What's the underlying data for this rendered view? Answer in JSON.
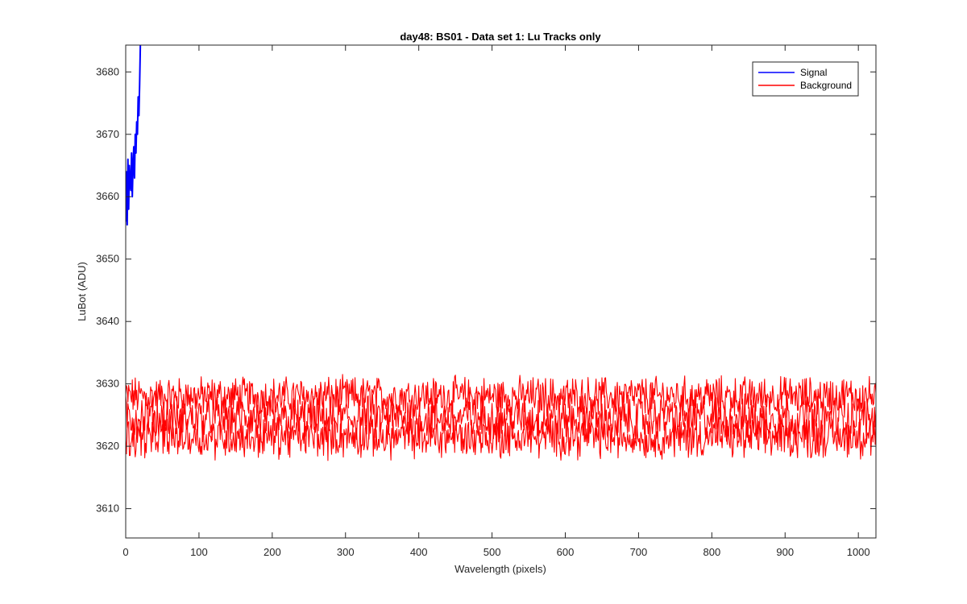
{
  "chart_data": {
    "type": "line",
    "title": "day48: BS01 - Data set 1: Lu Tracks only",
    "xlabel": "Wavelength (pixels)",
    "ylabel": "LuBot (ADU)",
    "xlim": [
      0,
      1024
    ],
    "ylim": [
      3605.3,
      3684.3
    ],
    "xticks": [
      0,
      100,
      200,
      300,
      400,
      500,
      600,
      700,
      800,
      900,
      1000
    ],
    "yticks": [
      3610,
      3620,
      3630,
      3640,
      3650,
      3660,
      3670,
      3680
    ],
    "grid": false,
    "legend": {
      "position": "top-right",
      "entries": [
        "Signal",
        "Background"
      ]
    },
    "series": [
      {
        "name": "Signal",
        "color": "#0000ff",
        "x": [
          0,
          1,
          2,
          3,
          4,
          5,
          6,
          7,
          8,
          9,
          10,
          11,
          12,
          13,
          14,
          15,
          16,
          17,
          18,
          19,
          20
        ],
        "values": [
          3656,
          3664,
          3655.5,
          3666,
          3658,
          3665,
          3662,
          3661,
          3667,
          3660,
          3665,
          3668,
          3663,
          3670,
          3667,
          3672,
          3670,
          3676,
          3673,
          3678,
          3684.3
        ]
      },
      {
        "name": "Background",
        "color": "#ff0000",
        "x_range": [
          0,
          1024
        ],
        "bands": [
          {
            "mean": 3628,
            "amplitude": 2.6
          },
          {
            "mean": 3624.5,
            "amplitude": 3.0
          },
          {
            "mean": 3621.5,
            "amplitude": 2.8
          }
        ],
        "min": 3615.5,
        "max": 3634
      }
    ]
  }
}
